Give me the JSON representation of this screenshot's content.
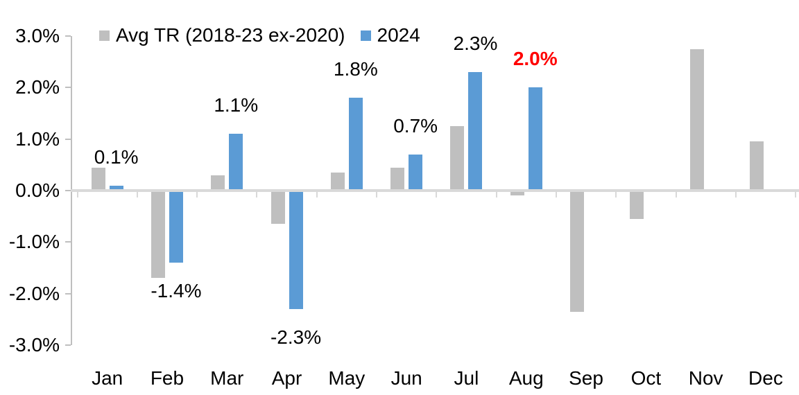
{
  "chart_data": {
    "type": "bar",
    "title": "",
    "xlabel": "",
    "ylabel": "",
    "categories": [
      "Jan",
      "Feb",
      "Mar",
      "Apr",
      "May",
      "Jun",
      "Jul",
      "Aug",
      "Sep",
      "Oct",
      "Nov",
      "Dec"
    ],
    "series": [
      {
        "name": "Avg TR (2018-23 ex-2020)",
        "color": "#bfbfbf",
        "values": [
          0.45,
          -1.7,
          0.3,
          -0.65,
          0.35,
          0.45,
          1.25,
          -0.1,
          -2.35,
          -0.55,
          2.75,
          0.95
        ]
      },
      {
        "name": "2024",
        "color": "#5b9bd5",
        "values": [
          0.1,
          -1.4,
          1.1,
          -2.3,
          1.8,
          0.7,
          2.3,
          2.0,
          null,
          null,
          null,
          null
        ]
      }
    ],
    "data_labels": [
      {
        "category": "Jan",
        "series": "2024",
        "text": "0.1%",
        "color": "#000000",
        "bold": false
      },
      {
        "category": "Feb",
        "series": "2024",
        "text": "-1.4%",
        "color": "#000000",
        "bold": false
      },
      {
        "category": "Mar",
        "series": "2024",
        "text": "1.1%",
        "color": "#000000",
        "bold": false
      },
      {
        "category": "Apr",
        "series": "2024",
        "text": "-2.3%",
        "color": "#000000",
        "bold": false
      },
      {
        "category": "May",
        "series": "2024",
        "text": "1.8%",
        "color": "#000000",
        "bold": false
      },
      {
        "category": "Jun",
        "series": "2024",
        "text": "0.7%",
        "color": "#000000",
        "bold": false
      },
      {
        "category": "Jul",
        "series": "2024",
        "text": "2.3%",
        "color": "#000000",
        "bold": false
      },
      {
        "category": "Aug",
        "series": "2024",
        "text": "2.0%",
        "color": "#ff0000",
        "bold": true
      }
    ],
    "y_axis": {
      "tick_labels": [
        "3.0%",
        "2.0%",
        "1.0%",
        "0.0%",
        "-1.0%",
        "-2.0%",
        "-3.0%"
      ],
      "tick_values": [
        3,
        2,
        1,
        0,
        -1,
        -2,
        -3
      ],
      "min": -3.0,
      "max": 3.0,
      "format": "percent"
    },
    "grid": false,
    "legend_position": "top",
    "background": "#ffffff",
    "text_color": "#000000",
    "x_axis_line_color": "#d9d9d9",
    "y_axis_line_color": "#bfbfbf"
  }
}
